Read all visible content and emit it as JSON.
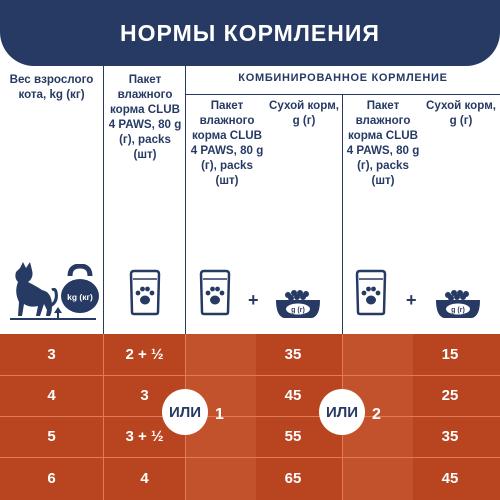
{
  "header": {
    "title": "НОРМЫ КОРМЛЕНИЯ"
  },
  "columns": {
    "weight_label": "Вес взрослого кота, kg (кг)",
    "wet_pack_label": "Пакет влажного корма CLUB 4 PAWS, 80 g (г), packs (шт)",
    "combined_title": "КОМБИНИРОВАННОЕ КОРМЛЕНИЕ",
    "dry_label": "Сухой корм, g (г)"
  },
  "icons": {
    "kettlebell_label": "kg (кг)",
    "bowl_label": "g (г)",
    "plus": "+",
    "names": [
      "cat-icon",
      "kettlebell-icon",
      "pouch-icon",
      "food-bowl-icon"
    ]
  },
  "table": {
    "rows": [
      {
        "weight": "3",
        "wet_only": "2 + ½",
        "dry_option1": "35",
        "dry_option2": "15"
      },
      {
        "weight": "4",
        "wet_only": "3",
        "dry_option1": "45",
        "dry_option2": "25"
      },
      {
        "weight": "5",
        "wet_only": "3 + ½",
        "dry_option1": "55",
        "dry_option2": "35"
      },
      {
        "weight": "6",
        "wet_only": "4",
        "dry_option1": "65",
        "dry_option2": "45"
      }
    ],
    "or_label": "ИЛИ",
    "option1_packs": "1",
    "option2_packs": "2"
  },
  "colors": {
    "navy": "#263a63",
    "orange": "#b84520",
    "white": "#ffffff"
  }
}
